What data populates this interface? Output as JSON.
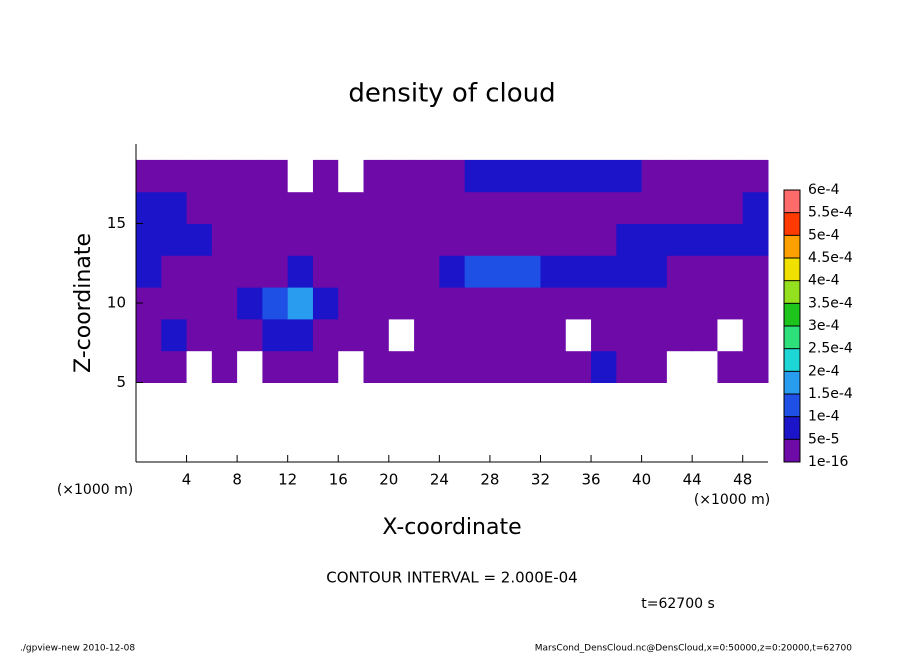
{
  "chart_data": {
    "type": "contour",
    "title": "density of cloud",
    "x_label": "X-coordinate",
    "y_label": "Z-coordinate",
    "x_unit_label": "(×1000 m)",
    "contour_note": "CONTOUR INTERVAL = 2.000E-04",
    "time_label": "t=62700 s",
    "footer_left": "./gpview-new   2010-12-08",
    "footer_right": "MarsCond_DensCloud.nc@DensCloud,x=0:50000,z=0:20000,t=62700",
    "xlim": [
      0,
      50
    ],
    "xticks": [
      4,
      8,
      12,
      16,
      20,
      24,
      28,
      32,
      36,
      40,
      44,
      48
    ],
    "ylim": [
      0,
      20
    ],
    "yticks": [
      5,
      10,
      15
    ],
    "x": [
      1,
      3,
      5,
      7,
      9,
      11,
      13,
      15,
      17,
      19,
      21,
      23,
      25,
      27,
      29,
      31,
      33,
      35,
      37,
      39,
      41,
      43,
      45,
      47,
      49
    ],
    "z": [
      6,
      8,
      10,
      12,
      14,
      16,
      18
    ],
    "values": [
      [
        3e-05,
        3e-05,
        0,
        3e-05,
        0,
        3e-05,
        3e-05,
        3e-05,
        0,
        3e-05,
        3e-05,
        3e-05,
        3e-05,
        3e-05,
        3e-05,
        3e-05,
        3e-05,
        3e-05,
        7e-05,
        3e-05,
        3e-05,
        0,
        0,
        3e-05,
        3e-05
      ],
      [
        3e-05,
        7e-05,
        3e-05,
        3e-05,
        3e-05,
        7e-05,
        7e-05,
        3e-05,
        3e-05,
        3e-05,
        0,
        3e-05,
        3e-05,
        3e-05,
        3e-05,
        3e-05,
        3e-05,
        0,
        3e-05,
        3e-05,
        3e-05,
        3e-05,
        3e-05,
        0,
        3e-05
      ],
      [
        3e-05,
        3e-05,
        3e-05,
        3e-05,
        7e-05,
        0.00012,
        0.00017,
        7e-05,
        3e-05,
        3e-05,
        3e-05,
        3e-05,
        3e-05,
        3e-05,
        3e-05,
        3e-05,
        3e-05,
        3e-05,
        3e-05,
        3e-05,
        3e-05,
        3e-05,
        3e-05,
        3e-05,
        3e-05
      ],
      [
        7e-05,
        3e-05,
        3e-05,
        3e-05,
        3e-05,
        3e-05,
        7e-05,
        3e-05,
        3e-05,
        3e-05,
        3e-05,
        3e-05,
        7e-05,
        0.00012,
        0.00012,
        0.00012,
        7e-05,
        7e-05,
        7e-05,
        7e-05,
        7e-05,
        3e-05,
        3e-05,
        3e-05,
        3e-05
      ],
      [
        7e-05,
        7e-05,
        7e-05,
        3e-05,
        3e-05,
        3e-05,
        3e-05,
        3e-05,
        3e-05,
        3e-05,
        3e-05,
        3e-05,
        3e-05,
        3e-05,
        3e-05,
        3e-05,
        3e-05,
        3e-05,
        3e-05,
        7e-05,
        7e-05,
        7e-05,
        7e-05,
        7e-05,
        7e-05
      ],
      [
        7e-05,
        7e-05,
        3e-05,
        3e-05,
        3e-05,
        3e-05,
        3e-05,
        3e-05,
        3e-05,
        3e-05,
        3e-05,
        3e-05,
        3e-05,
        3e-05,
        3e-05,
        3e-05,
        3e-05,
        3e-05,
        3e-05,
        3e-05,
        3e-05,
        3e-05,
        3e-05,
        3e-05,
        7e-05
      ],
      [
        3e-05,
        3e-05,
        3e-05,
        3e-05,
        3e-05,
        3e-05,
        0,
        3e-05,
        0,
        3e-05,
        3e-05,
        3e-05,
        3e-05,
        7e-05,
        7e-05,
        7e-05,
        7e-05,
        7e-05,
        7e-05,
        7e-05,
        3e-05,
        3e-05,
        3e-05,
        3e-05,
        3e-05
      ]
    ],
    "levels": [
      {
        "value": 1e-16,
        "label": "1e-16"
      },
      {
        "value": 5e-05,
        "label": "5e-5"
      },
      {
        "value": 0.0001,
        "label": "1e-4"
      },
      {
        "value": 0.00015,
        "label": "1.5e-4"
      },
      {
        "value": 0.0002,
        "label": "2e-4"
      },
      {
        "value": 0.00025,
        "label": "2.5e-4"
      },
      {
        "value": 0.0003,
        "label": "3e-4"
      },
      {
        "value": 0.00035,
        "label": "3.5e-4"
      },
      {
        "value": 0.0004,
        "label": "4e-4"
      },
      {
        "value": 0.00045,
        "label": "4.5e-4"
      },
      {
        "value": 0.0005,
        "label": "5e-4"
      },
      {
        "value": 0.00055,
        "label": "5.5e-4"
      },
      {
        "value": 0.0006,
        "label": "6e-4"
      }
    ],
    "level_colors": [
      "#6e0aa8",
      "#1c14c8",
      "#1e50e6",
      "#2a9cf0",
      "#1ed6d6",
      "#2ee07a",
      "#1cc41c",
      "#94e01e",
      "#f0e000",
      "#ffa000",
      "#ff3a00",
      "#ff6a6a"
    ]
  }
}
